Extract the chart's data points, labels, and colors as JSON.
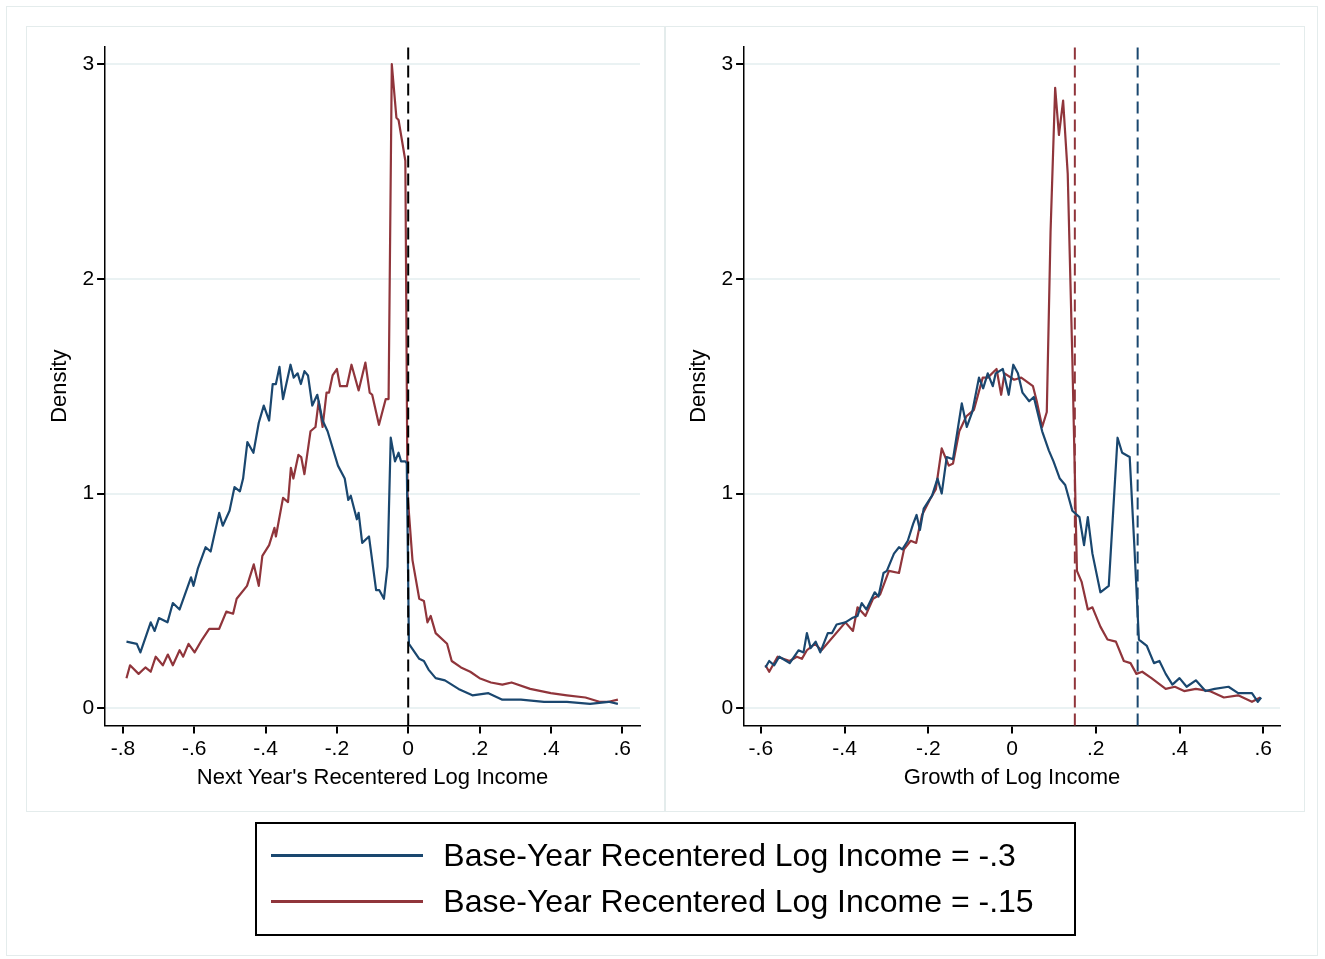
{
  "chart_data": [
    {
      "type": "line",
      "xlabel": "Next Year's Recentered Log Income",
      "ylabel": "Density",
      "xlim": [
        -0.85,
        0.65
      ],
      "ylim": [
        -0.08,
        3.08
      ],
      "xticks": [
        {
          "value": -0.8,
          "label": "-.8"
        },
        {
          "value": -0.6,
          "label": "-.6"
        },
        {
          "value": -0.4,
          "label": "-.4"
        },
        {
          "value": -0.2,
          "label": "-.2"
        },
        0,
        {
          "value": 0.2,
          "label": ".2"
        },
        {
          "value": 0.4,
          "label": ".4"
        },
        {
          "value": 0.6,
          "label": ".6"
        }
      ],
      "yticks": [
        0,
        1,
        2,
        3
      ],
      "grid": "y",
      "legend": "bottom",
      "line_style": "solid",
      "marker": "none",
      "ref_lines": [
        {
          "axis": "x",
          "value": 0,
          "color": "#000000",
          "line_style": "dashed"
        }
      ],
      "series": [
        {
          "name": "Base-Year Recentered Log Income = -.3",
          "color": "#1a476f",
          "x": [
            -0.79,
            -0.761,
            -0.751,
            -0.722,
            -0.711,
            -0.699,
            -0.675,
            -0.66,
            -0.641,
            -0.609,
            -0.602,
            -0.59,
            -0.568,
            -0.554,
            -0.53,
            -0.52,
            -0.501,
            -0.487,
            -0.472,
            -0.463,
            -0.451,
            -0.434,
            -0.419,
            -0.405,
            -0.39,
            -0.38,
            -0.371,
            -0.361,
            -0.351,
            -0.33,
            -0.321,
            -0.31,
            -0.301,
            -0.291,
            -0.281,
            -0.269,
            -0.255,
            -0.24,
            -0.226,
            -0.197,
            -0.178,
            -0.168,
            -0.161,
            -0.144,
            -0.139,
            -0.129,
            -0.11,
            -0.09,
            -0.081,
            -0.068,
            -0.058,
            -0.049,
            -0.037,
            -0.027,
            -0.02,
            -0.008,
            -0.004,
            0.002,
            0.031,
            0.044,
            0.057,
            0.077,
            0.103,
            0.141,
            0.18,
            0.225,
            0.264,
            0.316,
            0.381,
            0.445,
            0.51,
            0.562,
            0.588
          ],
          "values": [
            0.31,
            0.3,
            0.26,
            0.4,
            0.36,
            0.42,
            0.4,
            0.49,
            0.46,
            0.61,
            0.57,
            0.65,
            0.75,
            0.73,
            0.91,
            0.85,
            0.92,
            1.03,
            1.01,
            1.07,
            1.24,
            1.19,
            1.33,
            1.41,
            1.34,
            1.51,
            1.51,
            1.59,
            1.44,
            1.6,
            1.54,
            1.56,
            1.51,
            1.57,
            1.55,
            1.41,
            1.46,
            1.34,
            1.29,
            1.13,
            1.07,
            0.97,
            0.99,
            0.88,
            0.91,
            0.77,
            0.8,
            0.55,
            0.55,
            0.51,
            0.66,
            1.26,
            1.15,
            1.19,
            1.15,
            1.15,
            1.14,
            0.3,
            0.23,
            0.22,
            0.18,
            0.14,
            0.13,
            0.09,
            0.06,
            0.07,
            0.04,
            0.04,
            0.03,
            0.03,
            0.02,
            0.03,
            0.02
          ]
        },
        {
          "name": "Base-Year Recentered Log Income = -.15",
          "color": "#90353b",
          "x": [
            -0.79,
            -0.78,
            -0.756,
            -0.737,
            -0.722,
            -0.708,
            -0.688,
            -0.674,
            -0.66,
            -0.641,
            -0.631,
            -0.616,
            -0.599,
            -0.578,
            -0.558,
            -0.53,
            -0.51,
            -0.491,
            -0.481,
            -0.452,
            -0.433,
            -0.419,
            -0.409,
            -0.39,
            -0.375,
            -0.371,
            -0.351,
            -0.337,
            -0.329,
            -0.322,
            -0.308,
            -0.3,
            -0.291,
            -0.274,
            -0.26,
            -0.251,
            -0.24,
            -0.229,
            -0.222,
            -0.212,
            -0.2,
            -0.191,
            -0.172,
            -0.159,
            -0.139,
            -0.12,
            -0.108,
            -0.101,
            -0.082,
            -0.063,
            -0.055,
            -0.046,
            -0.033,
            -0.027,
            -0.008,
            -0.002,
            0.012,
            0.031,
            0.044,
            0.054,
            0.063,
            0.077,
            0.109,
            0.122,
            0.148,
            0.174,
            0.2,
            0.232,
            0.264,
            0.29,
            0.342,
            0.4,
            0.445,
            0.497,
            0.536,
            0.562,
            0.588
          ],
          "values": [
            0.14,
            0.2,
            0.16,
            0.19,
            0.17,
            0.24,
            0.2,
            0.25,
            0.2,
            0.27,
            0.24,
            0.3,
            0.26,
            0.32,
            0.37,
            0.37,
            0.45,
            0.44,
            0.51,
            0.57,
            0.67,
            0.57,
            0.71,
            0.76,
            0.84,
            0.8,
            0.98,
            0.96,
            1.12,
            1.07,
            1.18,
            1.17,
            1.09,
            1.29,
            1.31,
            1.43,
            1.31,
            1.47,
            1.47,
            1.55,
            1.58,
            1.5,
            1.5,
            1.6,
            1.48,
            1.61,
            1.47,
            1.46,
            1.32,
            1.44,
            1.44,
            3.0,
            2.75,
            2.74,
            2.55,
            1.0,
            0.69,
            0.51,
            0.5,
            0.4,
            0.43,
            0.35,
            0.3,
            0.22,
            0.19,
            0.17,
            0.14,
            0.12,
            0.11,
            0.12,
            0.09,
            0.07,
            0.06,
            0.05,
            0.03,
            0.03,
            0.04
          ]
        }
      ]
    },
    {
      "type": "line",
      "xlabel": "Growth of Log Income",
      "ylabel": "Density",
      "xlim": [
        -0.64,
        0.64
      ],
      "ylim": [
        -0.08,
        3.08
      ],
      "xticks": [
        {
          "value": -0.6,
          "label": "-.6"
        },
        {
          "value": -0.4,
          "label": "-.4"
        },
        {
          "value": -0.2,
          "label": "-.2"
        },
        0,
        {
          "value": 0.2,
          "label": ".2"
        },
        {
          "value": 0.4,
          "label": ".4"
        },
        {
          "value": 0.6,
          "label": ".6"
        }
      ],
      "yticks": [
        0,
        1,
        2,
        3
      ],
      "grid": "y",
      "line_style": "solid",
      "marker": "none",
      "ref_lines": [
        {
          "axis": "x",
          "value": 0.15,
          "color": "#90353b",
          "line_style": "dashed"
        },
        {
          "axis": "x",
          "value": 0.3,
          "color": "#1a476f",
          "line_style": "dashed"
        }
      ],
      "series": [
        {
          "color": "#1a476f",
          "x": [
            -0.589,
            -0.58,
            -0.568,
            -0.556,
            -0.531,
            -0.51,
            -0.498,
            -0.49,
            -0.481,
            -0.469,
            -0.458,
            -0.44,
            -0.43,
            -0.419,
            -0.398,
            -0.382,
            -0.369,
            -0.359,
            -0.348,
            -0.328,
            -0.319,
            -0.307,
            -0.299,
            -0.282,
            -0.27,
            -0.262,
            -0.249,
            -0.236,
            -0.228,
            -0.22,
            -0.211,
            -0.191,
            -0.178,
            -0.168,
            -0.156,
            -0.141,
            -0.12,
            -0.108,
            -0.095,
            -0.079,
            -0.069,
            -0.058,
            -0.046,
            -0.039,
            -0.022,
            -0.008,
            0.003,
            0.014,
            0.025,
            0.041,
            0.052,
            0.072,
            0.088,
            0.099,
            0.114,
            0.127,
            0.144,
            0.161,
            0.172,
            0.181,
            0.192,
            0.211,
            0.231,
            0.252,
            0.263,
            0.281,
            0.292,
            0.303,
            0.322,
            0.339,
            0.352,
            0.367,
            0.383,
            0.4,
            0.417,
            0.439,
            0.462,
            0.484,
            0.517,
            0.54,
            0.573,
            0.587,
            0.595
          ],
          "values": [
            0.19,
            0.22,
            0.2,
            0.24,
            0.21,
            0.27,
            0.26,
            0.35,
            0.28,
            0.31,
            0.26,
            0.35,
            0.35,
            0.39,
            0.4,
            0.42,
            0.43,
            0.49,
            0.46,
            0.54,
            0.52,
            0.63,
            0.64,
            0.72,
            0.75,
            0.74,
            0.78,
            0.86,
            0.9,
            0.83,
            0.93,
            0.99,
            1.07,
            1.0,
            1.17,
            1.16,
            1.42,
            1.31,
            1.38,
            1.54,
            1.49,
            1.56,
            1.5,
            1.56,
            1.58,
            1.46,
            1.6,
            1.56,
            1.47,
            1.43,
            1.45,
            1.29,
            1.2,
            1.15,
            1.07,
            1.04,
            0.92,
            0.89,
            0.76,
            0.89,
            0.72,
            0.54,
            0.57,
            1.26,
            1.19,
            1.17,
            0.76,
            0.32,
            0.29,
            0.21,
            0.22,
            0.16,
            0.11,
            0.14,
            0.1,
            0.13,
            0.08,
            0.09,
            0.1,
            0.07,
            0.07,
            0.03,
            0.05
          ]
        },
        {
          "color": "#90353b",
          "x": [
            -0.589,
            -0.58,
            -0.56,
            -0.531,
            -0.514,
            -0.502,
            -0.49,
            -0.471,
            -0.455,
            -0.398,
            -0.38,
            -0.369,
            -0.35,
            -0.332,
            -0.315,
            -0.294,
            -0.27,
            -0.258,
            -0.242,
            -0.229,
            -0.215,
            -0.194,
            -0.182,
            -0.168,
            -0.151,
            -0.141,
            -0.126,
            -0.109,
            -0.091,
            -0.07,
            -0.058,
            -0.037,
            -0.026,
            -0.018,
            0.005,
            0.022,
            0.05,
            0.059,
            0.072,
            0.083,
            0.092,
            0.103,
            0.112,
            0.122,
            0.133,
            0.144,
            0.155,
            0.166,
            0.181,
            0.192,
            0.211,
            0.228,
            0.248,
            0.267,
            0.283,
            0.297,
            0.311,
            0.333,
            0.367,
            0.389,
            0.411,
            0.439,
            0.472,
            0.506,
            0.54,
            0.573,
            0.593
          ],
          "values": [
            0.2,
            0.17,
            0.24,
            0.22,
            0.24,
            0.23,
            0.27,
            0.3,
            0.27,
            0.4,
            0.36,
            0.47,
            0.43,
            0.51,
            0.53,
            0.64,
            0.63,
            0.74,
            0.78,
            0.77,
            0.9,
            0.98,
            1.02,
            1.21,
            1.13,
            1.14,
            1.29,
            1.36,
            1.39,
            1.54,
            1.54,
            1.58,
            1.46,
            1.56,
            1.53,
            1.54,
            1.5,
            1.43,
            1.31,
            1.38,
            2.22,
            2.89,
            2.67,
            2.83,
            2.49,
            1.63,
            0.64,
            0.59,
            0.46,
            0.47,
            0.38,
            0.32,
            0.31,
            0.22,
            0.21,
            0.16,
            0.17,
            0.14,
            0.09,
            0.1,
            0.08,
            0.09,
            0.08,
            0.05,
            0.06,
            0.03,
            0.05
          ]
        }
      ]
    }
  ]
}
